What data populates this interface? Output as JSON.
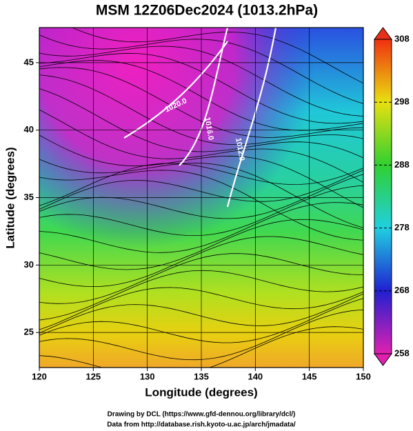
{
  "title": "MSM 12Z06Dec2024 (1013.2hPa)",
  "x_axis": {
    "label": "Longitude (degrees)",
    "lim": [
      120,
      150
    ],
    "ticks": [
      120,
      125,
      130,
      135,
      140,
      145,
      150
    ]
  },
  "y_axis": {
    "label": "Latitude  (degrees)",
    "lim": [
      22.4,
      47.6
    ],
    "ticks": [
      25,
      30,
      35,
      40,
      45
    ]
  },
  "colorbar": {
    "lim": [
      258,
      308
    ],
    "ticks": [
      258,
      268,
      278,
      288,
      298,
      308
    ]
  },
  "contour_labels": [
    "1020.0",
    "1016.0",
    "1012.0"
  ],
  "credits": [
    "Drawing by DCL (https://www.gfd-dennou.org/library/dcl/)",
    "Data from http://database.rish.kyoto-u.ac.jp/arch/jmadata/"
  ]
}
